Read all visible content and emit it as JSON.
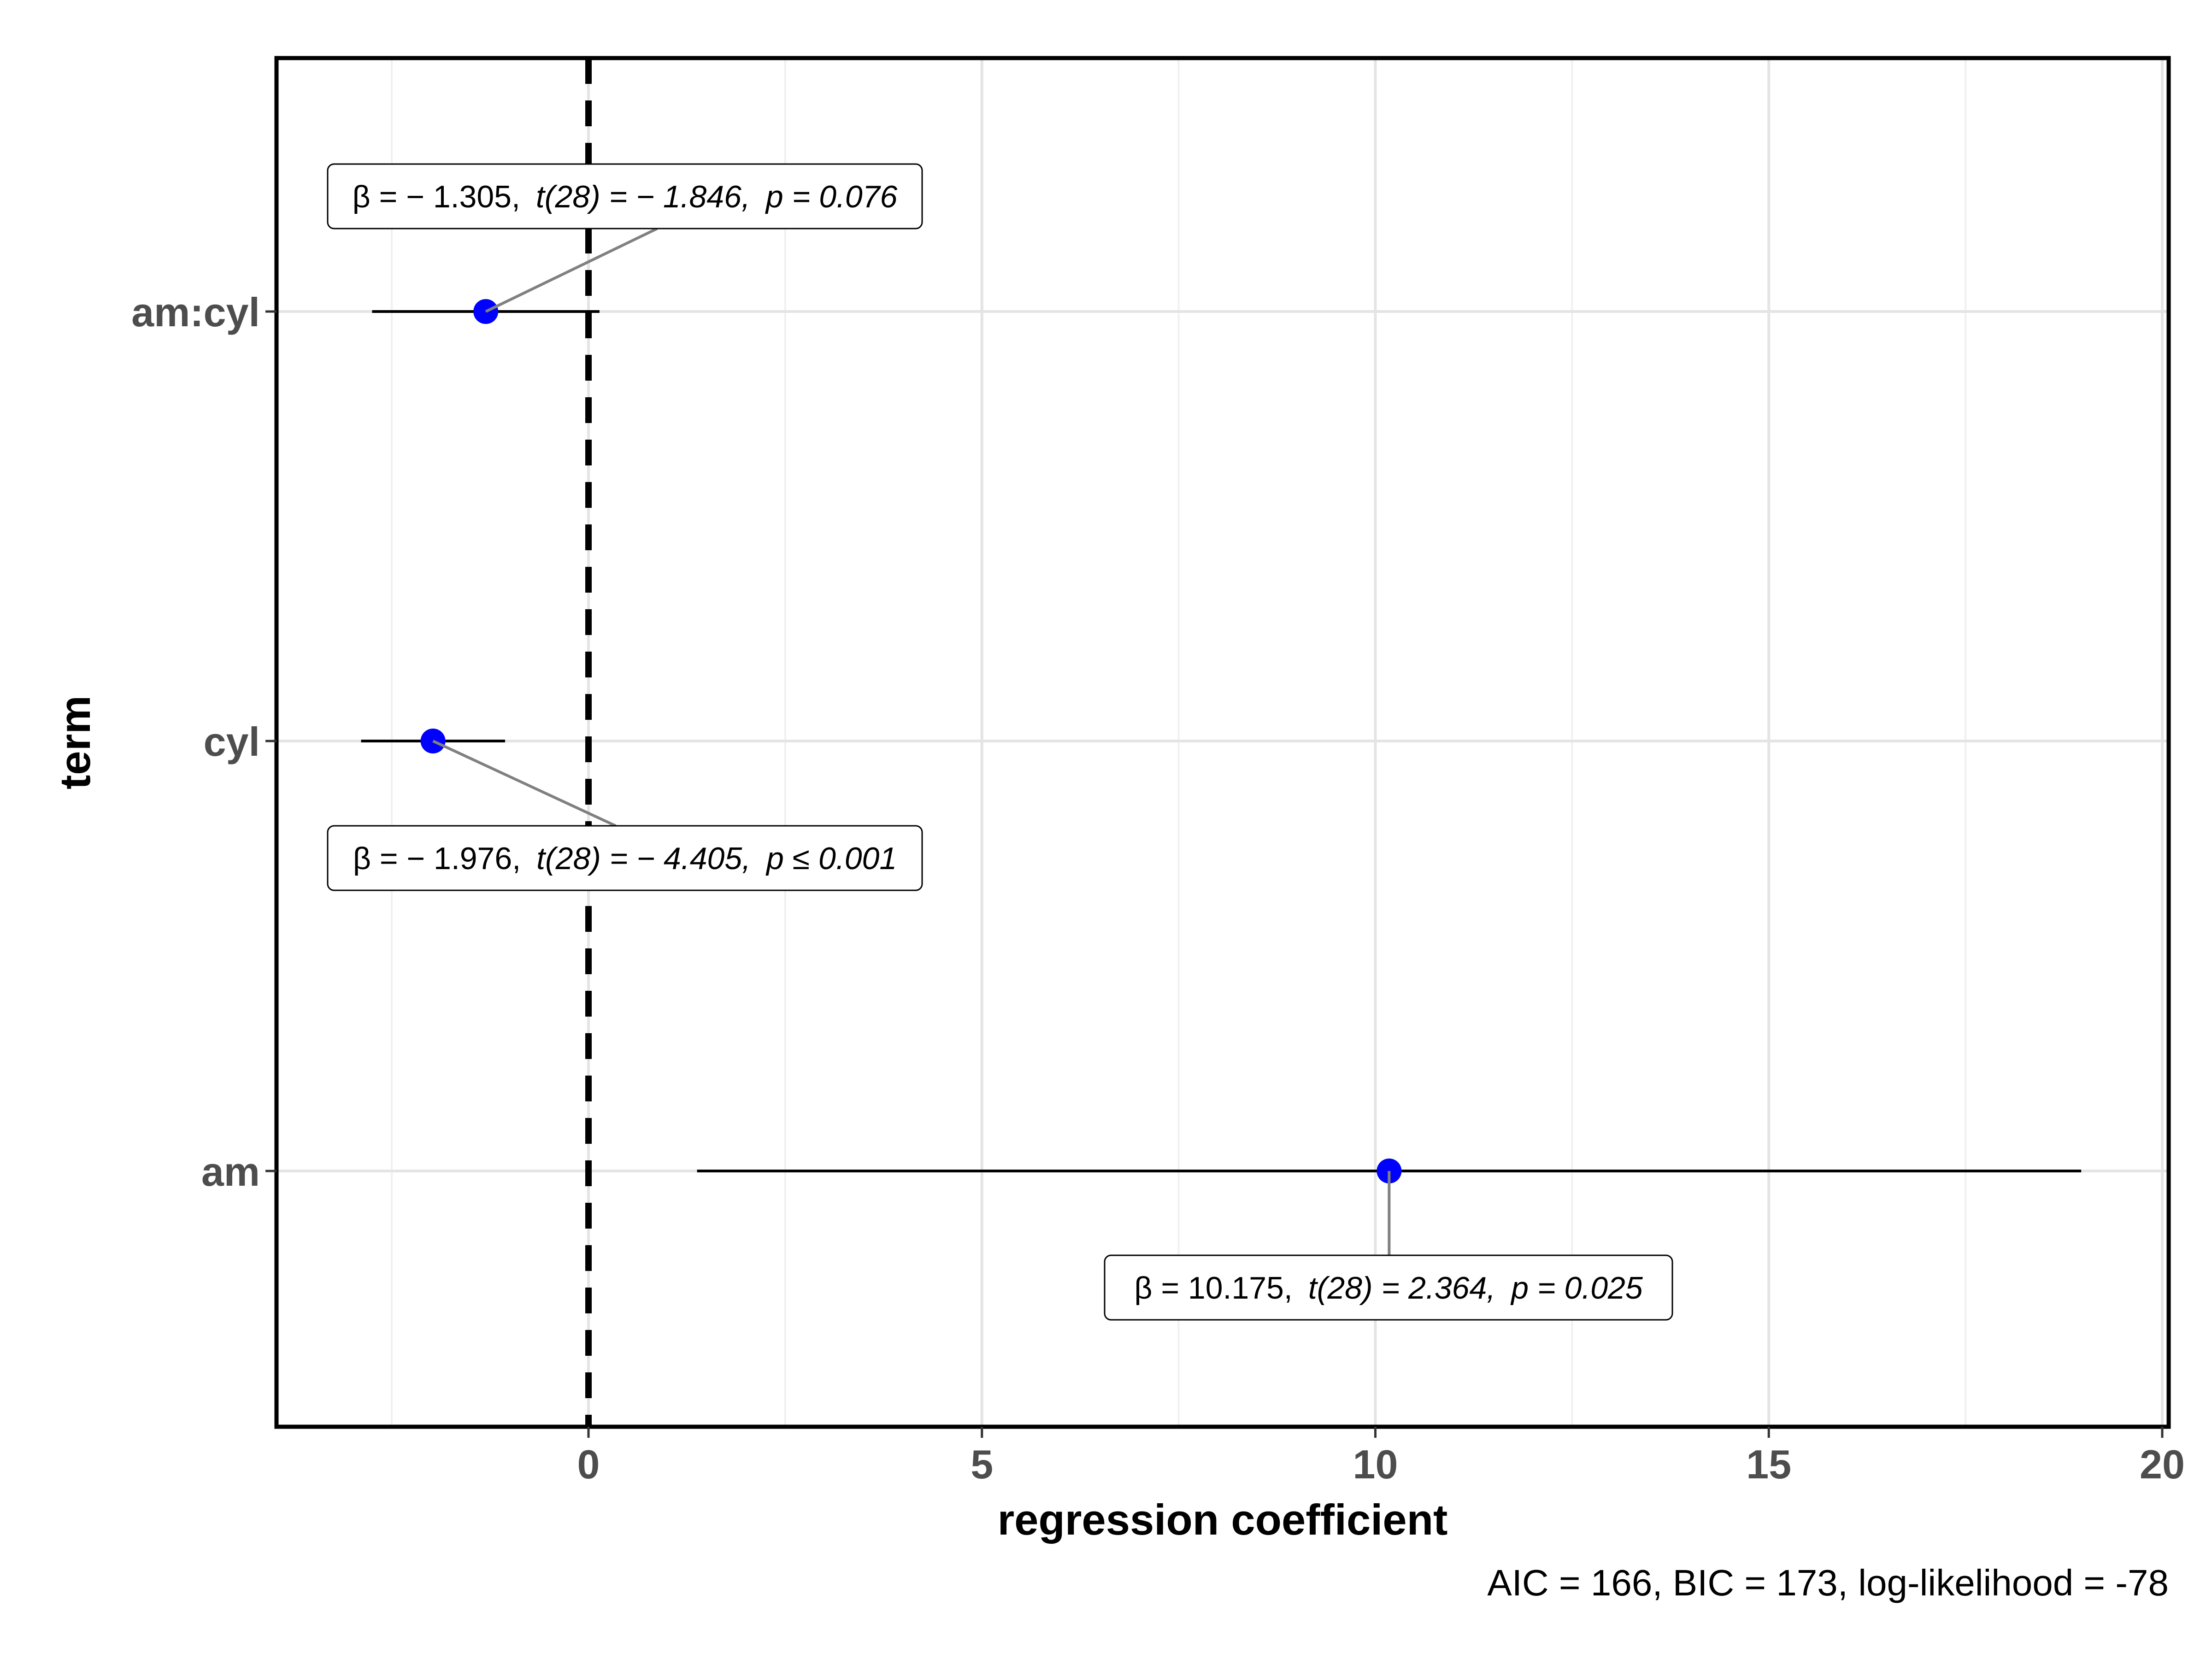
{
  "chart_data": {
    "type": "scatter",
    "title": "",
    "xlabel": "regression coefficient",
    "ylabel": "term",
    "caption": "AIC = 166, BIC = 173, log-likelihood = -78",
    "xlim": [
      -4,
      20
    ],
    "x_ticks": [
      0,
      5,
      10,
      15,
      20
    ],
    "x_tick_labels": [
      "0",
      "5",
      "10",
      "15",
      "20"
    ],
    "reference_line": 0,
    "grid": true,
    "point_color": "#0000ff",
    "categories": [
      "am",
      "cyl",
      "am:cyl"
    ],
    "terms": [
      {
        "term": "am",
        "estimate": 10.175,
        "conf_low": 1.38,
        "conf_high": 18.97,
        "label_parts": [
          "β = 10.175,",
          "t(28) = 2.364,",
          "p = 0.025"
        ]
      },
      {
        "term": "cyl",
        "estimate": -1.976,
        "conf_low": -2.89,
        "conf_high": -1.06,
        "label_parts": [
          "β = − 1.976,",
          "t(28) = − 4.405,",
          "p ≤ 0.001"
        ]
      },
      {
        "term": "am:cyl",
        "estimate": -1.305,
        "conf_low": -2.75,
        "conf_high": 0.14,
        "label_parts": [
          "β = − 1.305,",
          "t(28) = − 1.846,",
          "p = 0.076"
        ]
      }
    ]
  }
}
